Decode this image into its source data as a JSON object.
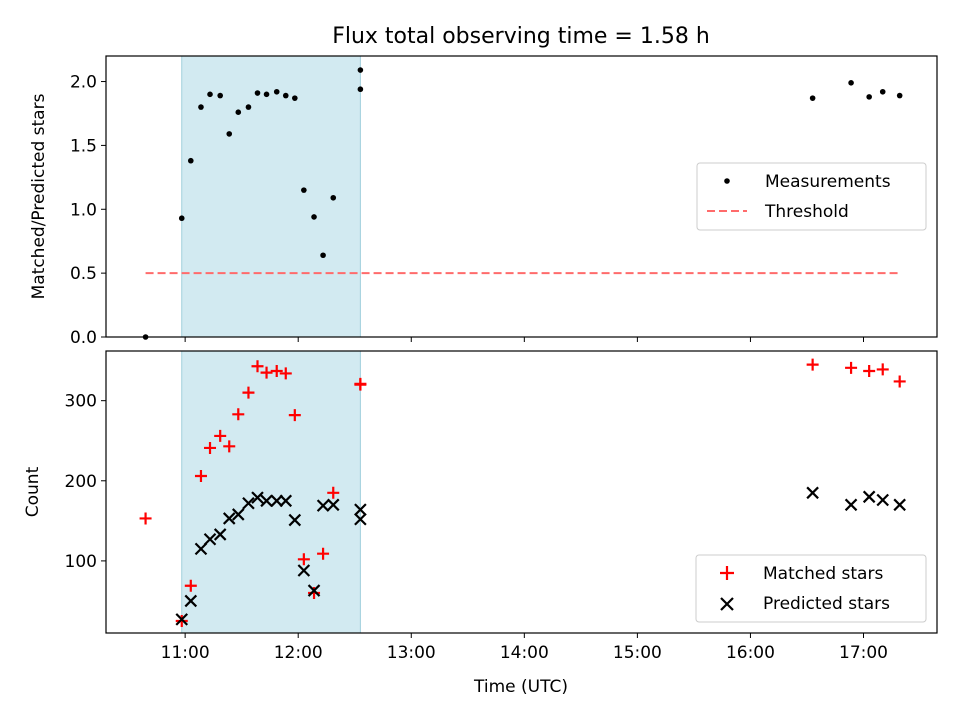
{
  "title": "Flux total observing time = 1.58 h",
  "colors": {
    "band": "#add8e6",
    "threshold": "#ff6b6b",
    "matched": "#ff0000",
    "predicted": "#000000",
    "measurement": "#000000"
  },
  "chart_data": [
    {
      "type": "scatter",
      "panel": "top",
      "ylabel": "Matched/Predicted stars",
      "xlabel": "",
      "xlim": [
        10.3,
        17.65
      ],
      "ylim": [
        0,
        2.2
      ],
      "yticks": [
        0.0,
        0.5,
        1.0,
        1.5,
        2.0
      ],
      "ytick_labels": [
        "0.0",
        "0.5",
        "1.0",
        "1.5",
        "2.0"
      ],
      "xticks": [
        11,
        12,
        13,
        14,
        15,
        16,
        17
      ],
      "grid": false,
      "legend_position": "center-right",
      "shaded_interval": [
        10.97,
        12.55
      ],
      "threshold": {
        "name": "Threshold",
        "value": 0.5,
        "x": [
          10.65,
          17.32
        ]
      },
      "series": [
        {
          "name": "Measurements",
          "x": [
            10.65,
            10.97,
            11.05,
            11.14,
            11.22,
            11.31,
            11.39,
            11.47,
            11.56,
            11.64,
            11.72,
            11.81,
            11.89,
            11.97,
            12.05,
            12.14,
            12.22,
            12.31,
            12.55,
            12.55,
            16.55,
            16.89,
            17.05,
            17.17,
            17.32
          ],
          "y": [
            0.0,
            0.93,
            1.38,
            1.8,
            1.9,
            1.89,
            1.59,
            1.76,
            1.8,
            1.91,
            1.9,
            1.92,
            1.89,
            1.87,
            1.15,
            0.94,
            0.64,
            1.09,
            2.09,
            1.94,
            1.87,
            1.99,
            1.88,
            1.92,
            1.89
          ]
        }
      ]
    },
    {
      "type": "scatter",
      "panel": "bottom",
      "ylabel": "Count",
      "xlabel": "Time (UTC)",
      "xlim": [
        10.3,
        17.65
      ],
      "ylim": [
        10,
        362
      ],
      "yticks": [
        100,
        200,
        300
      ],
      "ytick_labels": [
        "100",
        "200",
        "300"
      ],
      "xticks": [
        11,
        12,
        13,
        14,
        15,
        16,
        17
      ],
      "xtick_labels": [
        "11:00",
        "12:00",
        "13:00",
        "14:00",
        "15:00",
        "16:00",
        "17:00"
      ],
      "grid": false,
      "legend_position": "bottom-right",
      "shaded_interval": [
        10.97,
        12.55
      ],
      "series": [
        {
          "name": "Matched stars",
          "marker": "+",
          "x": [
            10.65,
            10.97,
            11.05,
            11.14,
            11.22,
            11.31,
            11.39,
            11.47,
            11.56,
            11.64,
            11.72,
            11.81,
            11.89,
            11.97,
            12.05,
            12.14,
            12.22,
            12.31,
            12.55,
            12.55,
            16.55,
            16.89,
            17.05,
            17.17,
            17.32
          ],
          "y": [
            153,
            25,
            69,
            206,
            241,
            256,
            243,
            283,
            310,
            343,
            335,
            337,
            334,
            282,
            102,
            60,
            109,
            185,
            321,
            320,
            345,
            341,
            337,
            339,
            324
          ]
        },
        {
          "name": "Predicted stars",
          "marker": "x",
          "x": [
            10.97,
            11.05,
            11.14,
            11.22,
            11.31,
            11.39,
            11.47,
            11.56,
            11.64,
            11.72,
            11.81,
            11.89,
            11.97,
            12.05,
            12.14,
            12.22,
            12.31,
            12.55,
            12.55,
            16.55,
            16.89,
            17.05,
            17.17,
            17.32
          ],
          "y": [
            27,
            50,
            115,
            127,
            133,
            153,
            158,
            172,
            179,
            175,
            175,
            175,
            151,
            88,
            63,
            169,
            170,
            164,
            152,
            185,
            170,
            180,
            176,
            170
          ]
        }
      ]
    }
  ]
}
